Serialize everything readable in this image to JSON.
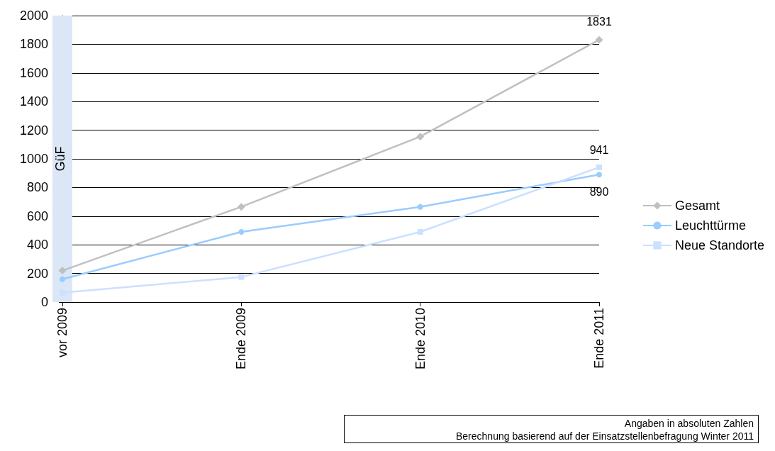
{
  "chart_data": {
    "type": "line",
    "categories": [
      "vor 2009",
      "Ende 2009",
      "Ende 2010",
      "Ende 2011"
    ],
    "series": [
      {
        "name": "Gesamt",
        "color": "#c0c0c0",
        "marker": "diamond",
        "values": [
          220,
          665,
          1155,
          1831
        ],
        "value_labels": [
          null,
          null,
          null,
          "1831"
        ]
      },
      {
        "name": "Leuchttürme",
        "color": "#99ccff",
        "marker": "circle",
        "values": [
          160,
          490,
          665,
          890
        ],
        "value_labels": [
          null,
          null,
          null,
          "890"
        ]
      },
      {
        "name": "Neue Standorte",
        "color": "#cce0ff",
        "marker": "square",
        "values": [
          65,
          175,
          490,
          941
        ],
        "value_labels": [
          null,
          null,
          null,
          "941"
        ]
      }
    ],
    "ylim": [
      0,
      2000
    ],
    "yticks": [
      0,
      200,
      400,
      600,
      800,
      1000,
      1200,
      1400,
      1600,
      1800,
      2000
    ],
    "grid": "y",
    "legend": "right",
    "ref_lines": [
      {
        "axis": "x",
        "value": "vor 2009",
        "label": "GüF",
        "color": "#dbe7f7"
      }
    ],
    "annotations": [
      "Angaben in absoluten Zahlen",
      "Berechnung basierend auf der Einsatzstellenbefragung Winter 2011"
    ]
  }
}
